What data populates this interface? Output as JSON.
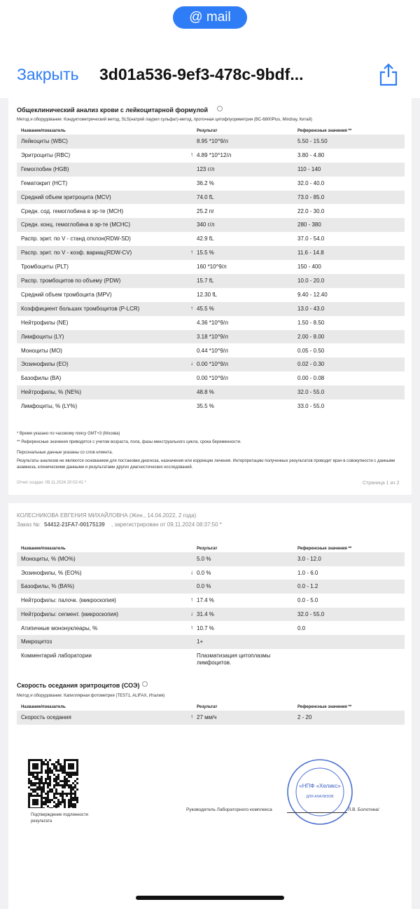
{
  "status_bar": {
    "mail": "@ mail"
  },
  "nav": {
    "close": "Закрыть",
    "title": "3d01a536-9ef3-478c-9bdf..."
  },
  "page1": {
    "title": "Общеклинический анализ крови с лейкоцитарной формулой",
    "method": "Метод и оборудование: Кондуктометрический метод, SLS(натрий лаурил сульфат)-метод, проточная цитофлуориметрия (BC-6800Plus, Mindray, Китай)",
    "columns": [
      "Название/показатель",
      "Результат",
      "Референсные значения **"
    ],
    "rows": [
      {
        "name": "Лейкоциты (WBC)",
        "result": "8.95 *10^9/л",
        "ref": "5.50 - 15.50"
      },
      {
        "name": "Эритроциты (RBC)",
        "flag": "↑",
        "result": "4.89 *10^12/л",
        "ref": "3.80 - 4.80"
      },
      {
        "name": "Гемоглобин (HGB)",
        "result": "123 г/л",
        "ref": "110 - 140"
      },
      {
        "name": "Гематокрит (HCT)",
        "result": "36.2 %",
        "ref": "32.0 - 40.0"
      },
      {
        "name": "Средний объем эритроцита (MCV)",
        "result": "74.0 fL",
        "ref": "73.0 - 85.0"
      },
      {
        "name": "Средн. сод. гемоглобина в эр-те (MCH)",
        "result": "25.2 пг",
        "ref": "22.0 - 30.0"
      },
      {
        "name": "Средн. конц. гемоглобина в эр-те (MCHC)",
        "result": "340 г/л",
        "ref": "280 - 380"
      },
      {
        "name": "Распр. эрит. по V - станд отклон(RDW-SD)",
        "result": "42.9 fL",
        "ref": "37.0 - 54.0"
      },
      {
        "name": "Распр. эрит. по V - коэф. вариац(RDW-CV)",
        "flag": "↑",
        "result": "15.5 %",
        "ref": "11.6 - 14.8"
      },
      {
        "name": "Тромбоциты (PLT)",
        "result": "160 *10^9/л",
        "ref": "150 - 400"
      },
      {
        "name": "Распр. тромбоцитов по объему (PDW)",
        "result": "15.7 fL",
        "ref": "10.0 - 20.0"
      },
      {
        "name": "Средний объем тромбоцита (MPV)",
        "result": "12.30 fL",
        "ref": "9.40 - 12.40"
      },
      {
        "name": "Коэффициент больших тромбоцитов (P-LCR)",
        "flag": "↑",
        "result": "45.5 %",
        "ref": "13.0 - 43.0"
      },
      {
        "name": "Нейтрофилы (NE)",
        "result": "4.36 *10^9/л",
        "ref": "1.50 - 8.50"
      },
      {
        "name": "Лимфоциты (LY)",
        "result": "3.18 *10^9/л",
        "ref": "2.00 - 8.00"
      },
      {
        "name": "Моноциты (MO)",
        "result": "0.44 *10^9/л",
        "ref": "0.05 - 0.50"
      },
      {
        "name": "Эозинофилы (EO)",
        "flag": "↓",
        "result": "0.00 *10^9/л",
        "ref": "0.02 - 0.30"
      },
      {
        "name": "Базофилы (BA)",
        "result": "0.00 *10^9/л",
        "ref": "0.00 - 0.08"
      },
      {
        "name": "Нейтрофилы, % (NE%)",
        "result": "48.8 %",
        "ref": "32.0 - 55.0"
      },
      {
        "name": "Лимфоциты, % (LY%)",
        "result": "35.5 %",
        "ref": "33.0 - 55.0"
      }
    ],
    "notes": [
      "* Время указано по часовому поясу GMT+3 (Москва)",
      "** Референсные значения приводятся с учетом возраста, пола, фазы менструального цикла, срока беременности.",
      "Персональные данные указаны со слов клиента.",
      "Результаты анализов не являются основанием для постановки диагноза, назначения или коррекции лечения. Интерпретацию полученных результатов проводит врач в совокупности с данными анамнеза, клиническими данными и результатами других диагностических исследований."
    ],
    "created": "Отчет создан: 09.11.2024 20:02:41 *",
    "page": "Страница 1 из 2"
  },
  "page2": {
    "patient": "КОЛЕСНИКОВА ЕВГЕНИЯ МИХАЙЛОВНА (Жен., 14.04.2022, 2 года)",
    "order_label": "Заказ №:",
    "order_number": "54412-21FA7-00175139",
    "order_rest": ", зарегистрирован от 09.11.2024 08:37:50 *",
    "columns": [
      "Название/показатель",
      "Результат",
      "Референсные значения **"
    ],
    "rows": [
      {
        "name": "Моноциты, % (MO%)",
        "result": "5.0 %",
        "ref": "3.0 - 12.0"
      },
      {
        "name": "Эозинофилы, % (EO%)",
        "flag": "↓",
        "result": "0.0 %",
        "ref": "1.0 - 6.0"
      },
      {
        "name": "Базофилы, % (BA%)",
        "result": "0.0 %",
        "ref": "0.0 - 1.2"
      },
      {
        "name": "Нейтрофилы: палочк. (микроскопия)",
        "flag": "↑",
        "result": "17.4 %",
        "ref": "0.0 - 5.0"
      },
      {
        "name": "Нейтрофилы: сегмент. (микроскопия)",
        "flag": "↓",
        "result": "31.4 %",
        "ref": "32.0 - 55.0"
      },
      {
        "name": "Атипичные мононуклеары, %",
        "flag": "↑",
        "result": "10.7 %",
        "ref": "0.0"
      },
      {
        "name": "Микроцитоз",
        "result": "1+"
      },
      {
        "name": "Комментарий лаборатории",
        "result": "Плазматизация цитоплазмы лимфоцитов."
      }
    ],
    "esr": {
      "title": "Скорость оседания эритроцитов (СОЭ)",
      "method": "Метод и оборудование: Капиллярная фотометрия (TEST1, ALIFAX, Италия)",
      "columns": [
        "Название/показатель",
        "Результат",
        "Референсные значения **"
      ],
      "rows": [
        {
          "name": "Скорость оседания",
          "flag": "↑",
          "result": "27 мм/ч",
          "ref": "2 - 20"
        }
      ]
    },
    "qr_caption": "Подтверждение подлинности результата",
    "signature": "Руководитель Лабораторного комплекса",
    "signer": "Л.В. Болотина/",
    "stamp": [
      "«НПФ «Хеликс»",
      "ДЛЯ АНАЛИЗОВ"
    ]
  }
}
